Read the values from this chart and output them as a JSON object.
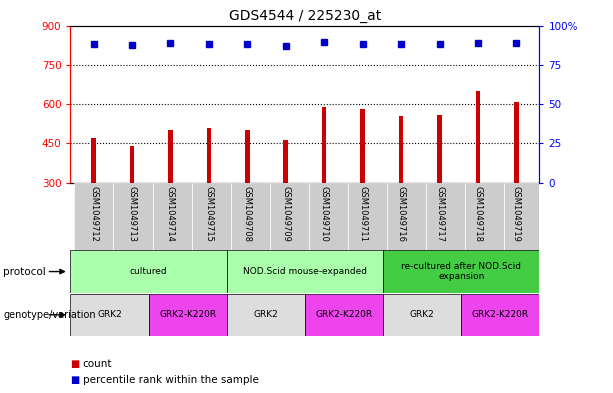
{
  "title": "GDS4544 / 225230_at",
  "samples": [
    "GSM1049712",
    "GSM1049713",
    "GSM1049714",
    "GSM1049715",
    "GSM1049708",
    "GSM1049709",
    "GSM1049710",
    "GSM1049711",
    "GSM1049716",
    "GSM1049717",
    "GSM1049718",
    "GSM1049719"
  ],
  "counts": [
    470,
    440,
    500,
    510,
    500,
    465,
    590,
    580,
    555,
    560,
    650,
    610
  ],
  "percentile_ranks": [
    830,
    825,
    835,
    830,
    828,
    822,
    836,
    830,
    831,
    830,
    835,
    835
  ],
  "ymin": 300,
  "ymax": 900,
  "yticks_left": [
    300,
    450,
    600,
    750,
    900
  ],
  "yticks_right": [
    0,
    25,
    50,
    75,
    100
  ],
  "bar_color": "#cc0000",
  "dot_color": "#0000cc",
  "bg_color": "#ffffff",
  "protocol_groups": [
    {
      "label": "cultured",
      "start": 0,
      "end": 3,
      "color": "#aaffaa"
    },
    {
      "label": "NOD.Scid mouse-expanded",
      "start": 4,
      "end": 7,
      "color": "#aaffaa"
    },
    {
      "label": "re-cultured after NOD.Scid\nexpansion",
      "start": 8,
      "end": 11,
      "color": "#44cc44"
    }
  ],
  "genotype_groups": [
    {
      "label": "GRK2",
      "start": 0,
      "end": 1,
      "color": "#dddddd"
    },
    {
      "label": "GRK2-K220R",
      "start": 2,
      "end": 3,
      "color": "#ee44ee"
    },
    {
      "label": "GRK2",
      "start": 4,
      "end": 5,
      "color": "#dddddd"
    },
    {
      "label": "GRK2-K220R",
      "start": 6,
      "end": 7,
      "color": "#ee44ee"
    },
    {
      "label": "GRK2",
      "start": 8,
      "end": 9,
      "color": "#dddddd"
    },
    {
      "label": "GRK2-K220R",
      "start": 10,
      "end": 11,
      "color": "#ee44ee"
    }
  ],
  "legend_items": [
    {
      "label": "count",
      "color": "#cc0000"
    },
    {
      "label": "percentile rank within the sample",
      "color": "#0000cc"
    }
  ]
}
